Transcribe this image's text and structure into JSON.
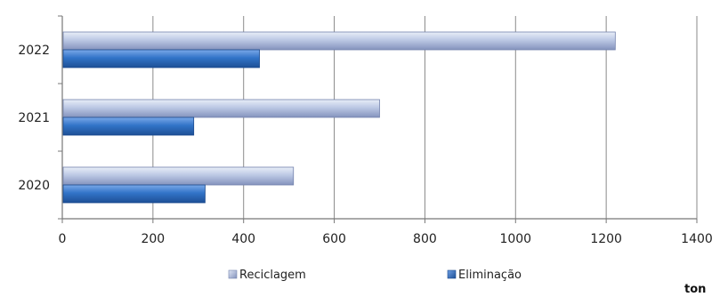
{
  "chart_data": {
    "type": "bar",
    "orientation": "horizontal",
    "categories": [
      "2020",
      "2021",
      "2022"
    ],
    "series": [
      {
        "name": "Reciclagem",
        "values": [
          510,
          700,
          1220
        ],
        "color": "#a9b7d8"
      },
      {
        "name": "Eliminação",
        "values": [
          315,
          290,
          435
        ],
        "color": "#2f6fc0"
      }
    ],
    "xlim": [
      0,
      1400
    ],
    "xticks": [
      0,
      200,
      400,
      600,
      800,
      1000,
      1200,
      1400
    ],
    "xtick_labels": [
      "0",
      "200",
      "400",
      "600",
      "800",
      "1000",
      "1200",
      "1400"
    ],
    "unit": "ton",
    "grid": "vertical",
    "legend": "bottom"
  }
}
